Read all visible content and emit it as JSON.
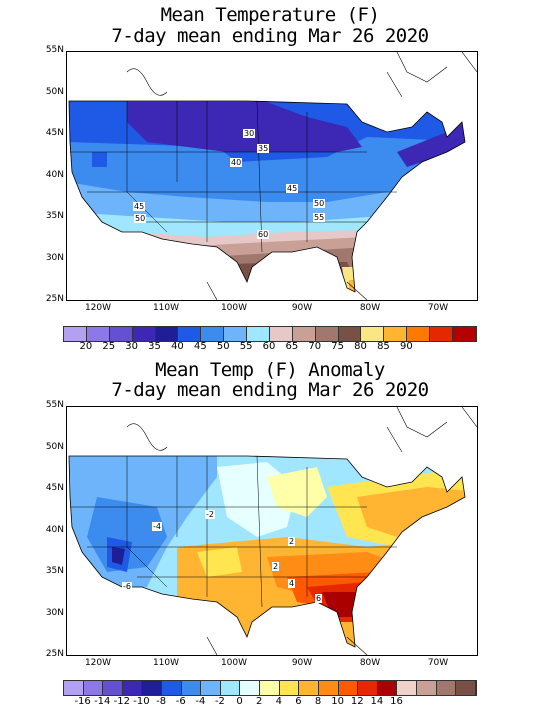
{
  "top": {
    "title_line1": "Mean Temperature (F)",
    "title_line2": "7-day mean ending Mar 26 2020",
    "lat_labels": [
      "55N",
      "50N",
      "45N",
      "40N",
      "35N",
      "30N",
      "25N"
    ],
    "lon_labels": [
      "120W",
      "110W",
      "100W",
      "90W",
      "80W",
      "70W"
    ],
    "contour_labels": [
      "30",
      "35",
      "40",
      "45",
      "45",
      "50",
      "50",
      "55",
      "60"
    ],
    "colorbar": {
      "colors": [
        "#b4a0f0",
        "#8c78e6",
        "#6450d2",
        "#3c28b4",
        "#1e1e96",
        "#1e5ae6",
        "#3c8cf0",
        "#6eb4fa",
        "#a0e6ff",
        "#e6c8c8",
        "#c8a096",
        "#a0786e",
        "#785046",
        "#fae682",
        "#ffb432",
        "#ff7800",
        "#e62800",
        "#b40000"
      ],
      "labels": [
        "20",
        "25",
        "30",
        "35",
        "40",
        "45",
        "50",
        "55",
        "60",
        "65",
        "70",
        "75",
        "80",
        "85",
        "90"
      ]
    }
  },
  "bottom": {
    "title_line1": "Mean Temp (F) Anomaly",
    "title_line2": "7-day mean ending Mar 26 2020",
    "lat_labels": [
      "55N",
      "50N",
      "45N",
      "40N",
      "35N",
      "30N",
      "25N"
    ],
    "lon_labels": [
      "120W",
      "110W",
      "100W",
      "90W",
      "80W",
      "70W"
    ],
    "contour_labels": [
      "-2",
      "-4",
      "-6",
      "2",
      "2",
      "4",
      "6"
    ],
    "colorbar": {
      "colors": [
        "#b4a0f0",
        "#8c78e6",
        "#6450d2",
        "#3c28b4",
        "#1e1e96",
        "#1e5ae6",
        "#3c8cf0",
        "#6eb4fa",
        "#a0e6ff",
        "#e6ffff",
        "#ffffaa",
        "#ffe650",
        "#ffb432",
        "#ff8c14",
        "#ff5a00",
        "#e62800",
        "#aa0000",
        "#f0d2c8",
        "#c8a096",
        "#a0786e",
        "#785046"
      ],
      "labels": [
        "-16",
        "-14",
        "-12",
        "-10",
        "-8",
        "-6",
        "-4",
        "-2",
        "0",
        "2",
        "4",
        "6",
        "8",
        "10",
        "12",
        "14",
        "16"
      ]
    }
  }
}
